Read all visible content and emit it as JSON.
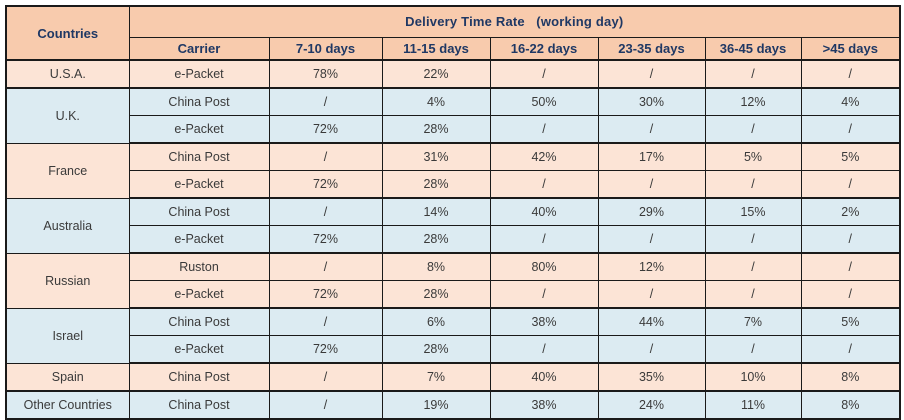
{
  "table": {
    "title": "Delivery Time Rate   (working day)",
    "countries_header": "Countries",
    "columns": [
      "Carrier",
      "7-10 days",
      "11-15 days",
      "16-22 days",
      "23-35 days",
      "36-45 days",
      ">45 days"
    ],
    "groups": [
      {
        "country": "U.S.A.",
        "tone": "peach",
        "rows": [
          {
            "carrier": "e-Packet",
            "values": [
              "78%",
              "22%",
              "/",
              "/",
              "/",
              "/"
            ]
          }
        ]
      },
      {
        "country": "U.K.",
        "tone": "blue",
        "rows": [
          {
            "carrier": "China Post",
            "values": [
              "/",
              "4%",
              "50%",
              "30%",
              "12%",
              "4%"
            ]
          },
          {
            "carrier": "e-Packet",
            "values": [
              "72%",
              "28%",
              "/",
              "/",
              "/",
              "/"
            ]
          }
        ]
      },
      {
        "country": "France",
        "tone": "peach",
        "rows": [
          {
            "carrier": "China Post",
            "values": [
              "/",
              "31%",
              "42%",
              "17%",
              "5%",
              "5%"
            ]
          },
          {
            "carrier": "e-Packet",
            "values": [
              "72%",
              "28%",
              "/",
              "/",
              "/",
              "/"
            ]
          }
        ]
      },
      {
        "country": "Australia",
        "tone": "blue",
        "rows": [
          {
            "carrier": "China Post",
            "values": [
              "/",
              "14%",
              "40%",
              "29%",
              "15%",
              "2%"
            ]
          },
          {
            "carrier": "e-Packet",
            "values": [
              "72%",
              "28%",
              "/",
              "/",
              "/",
              "/"
            ]
          }
        ]
      },
      {
        "country": "Russian",
        "tone": "peach",
        "rows": [
          {
            "carrier": "Ruston",
            "values": [
              "/",
              "8%",
              "80%",
              "12%",
              "/",
              "/"
            ]
          },
          {
            "carrier": "e-Packet",
            "values": [
              "72%",
              "28%",
              "/",
              "/",
              "/",
              "/"
            ]
          }
        ]
      },
      {
        "country": "Israel",
        "tone": "blue",
        "rows": [
          {
            "carrier": "China Post",
            "values": [
              "/",
              "6%",
              "38%",
              "44%",
              "7%",
              "5%"
            ]
          },
          {
            "carrier": "e-Packet",
            "values": [
              "72%",
              "28%",
              "/",
              "/",
              "/",
              "/"
            ]
          }
        ]
      },
      {
        "country": "Spain",
        "tone": "peach",
        "rows": [
          {
            "carrier": "China Post",
            "values": [
              "/",
              "7%",
              "40%",
              "35%",
              "10%",
              "8%"
            ]
          }
        ]
      },
      {
        "country": "Other Countries",
        "tone": "blue",
        "rows": [
          {
            "carrier": "China Post",
            "values": [
              "/",
              "19%",
              "38%",
              "24%",
              "11%",
              "8%"
            ]
          }
        ]
      }
    ],
    "colors": {
      "header_bg": "#f8cbad",
      "peach_bg": "#fce4d6",
      "blue_bg": "#dcebf2",
      "header_text": "#1f3864",
      "body_text": "#3a3a3a",
      "border": "#1a1a1a"
    }
  },
  "chart_data": {
    "type": "table",
    "title": "Delivery Time Rate (working day)",
    "columns": [
      "Countries",
      "Carrier",
      "7-10 days",
      "11-15 days",
      "16-22 days",
      "23-35 days",
      "36-45 days",
      ">45 days"
    ],
    "rows": [
      [
        "U.S.A.",
        "e-Packet",
        "78%",
        "22%",
        "/",
        "/",
        "/",
        "/"
      ],
      [
        "U.K.",
        "China Post",
        "/",
        "4%",
        "50%",
        "30%",
        "12%",
        "4%"
      ],
      [
        "U.K.",
        "e-Packet",
        "72%",
        "28%",
        "/",
        "/",
        "/",
        "/"
      ],
      [
        "France",
        "China Post",
        "/",
        "31%",
        "42%",
        "17%",
        "5%",
        "5%"
      ],
      [
        "France",
        "e-Packet",
        "72%",
        "28%",
        "/",
        "/",
        "/",
        "/"
      ],
      [
        "Australia",
        "China Post",
        "/",
        "14%",
        "40%",
        "29%",
        "15%",
        "2%"
      ],
      [
        "Australia",
        "e-Packet",
        "72%",
        "28%",
        "/",
        "/",
        "/",
        "/"
      ],
      [
        "Russian",
        "Ruston",
        "/",
        "8%",
        "80%",
        "12%",
        "/",
        "/"
      ],
      [
        "Russian",
        "e-Packet",
        "72%",
        "28%",
        "/",
        "/",
        "/",
        "/"
      ],
      [
        "Israel",
        "China Post",
        "/",
        "6%",
        "38%",
        "44%",
        "7%",
        "5%"
      ],
      [
        "Israel",
        "e-Packet",
        "72%",
        "28%",
        "/",
        "/",
        "/",
        "/"
      ],
      [
        "Spain",
        "China Post",
        "/",
        "7%",
        "40%",
        "35%",
        "10%",
        "8%"
      ],
      [
        "Other Countries",
        "China Post",
        "/",
        "19%",
        "38%",
        "24%",
        "11%",
        "8%"
      ]
    ]
  }
}
